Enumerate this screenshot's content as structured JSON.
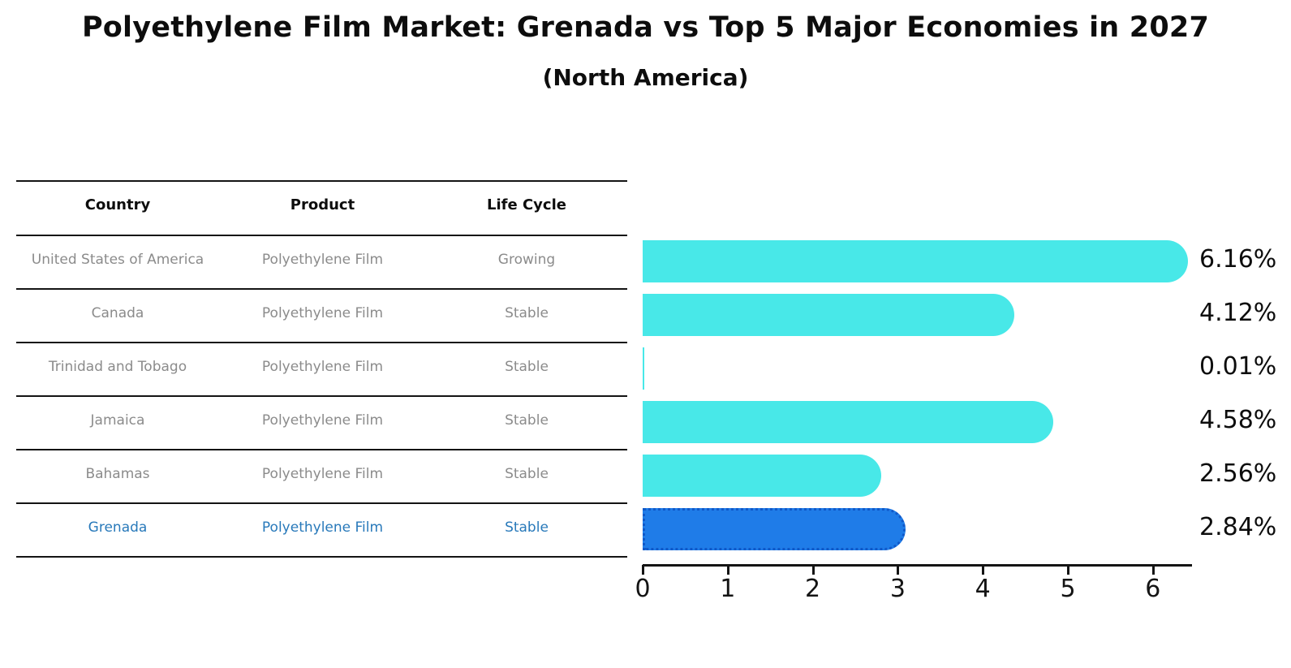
{
  "title": "Polyethylene Film Market: Grenada vs Top 5 Major Economies in 2027",
  "subtitle": "(North America)",
  "table": {
    "columns": [
      "Country",
      "Product",
      "Life Cycle"
    ],
    "rows": [
      {
        "country": "United States of America",
        "product": "Polyethylene Film",
        "life_cycle": "Growing",
        "highlight": false
      },
      {
        "country": "Canada",
        "product": "Polyethylene Film",
        "life_cycle": "Stable",
        "highlight": false
      },
      {
        "country": "Trinidad and Tobago",
        "product": "Polyethylene Film",
        "life_cycle": "Stable",
        "highlight": false
      },
      {
        "country": "Jamaica",
        "product": "Polyethylene Film",
        "life_cycle": "Stable",
        "highlight": false
      },
      {
        "country": "Bahamas",
        "product": "Polyethylene Film",
        "life_cycle": "Stable",
        "highlight": false
      },
      {
        "country": "Grenada",
        "product": "Polyethylene Film",
        "life_cycle": "Stable",
        "highlight": true
      }
    ]
  },
  "chart_data": {
    "type": "bar",
    "orientation": "horizontal",
    "categories": [
      "United States of America",
      "Canada",
      "Trinidad and Tobago",
      "Jamaica",
      "Bahamas",
      "Grenada"
    ],
    "values": [
      6.16,
      4.12,
      0.01,
      4.58,
      2.56,
      2.84
    ],
    "labels": [
      "6.16%",
      "4.12%",
      "0.01%",
      "4.58%",
      "2.56%",
      "2.84%"
    ],
    "x_ticks": [
      "0",
      "1",
      "2",
      "3",
      "4",
      "5",
      "6"
    ],
    "xlim": [
      0,
      6.5
    ],
    "grid": false,
    "legend": false,
    "bar_color": "#48e8e8",
    "highlight_index": 5,
    "highlight_color": "#1f7ce8",
    "highlight_border_color": "#1059c9",
    "highlight_text_color": "#2879ba",
    "row_text_color": "#8b8b8b",
    "value_label_color": "#0d0d0d"
  }
}
